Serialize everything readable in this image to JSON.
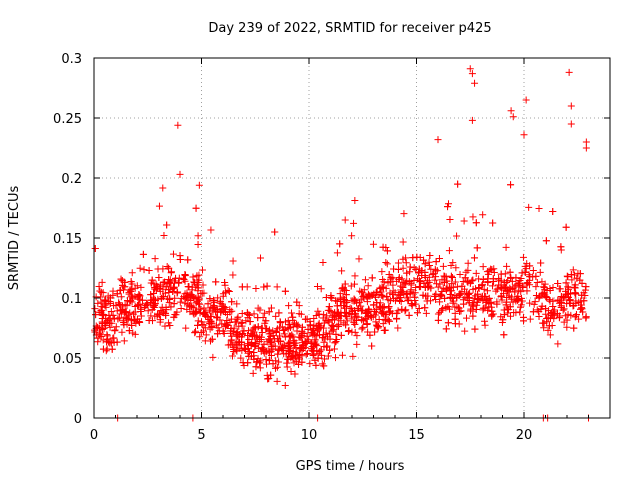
{
  "chart_data": {
    "type": "scatter",
    "title": "Day 239 of 2022, SRMTID for receiver p425",
    "xlabel": "GPS time / hours",
    "ylabel": "SRMTID / TECUs",
    "xlim": [
      0,
      24
    ],
    "ylim": [
      0,
      0.3
    ],
    "xticks": [
      0,
      5,
      10,
      15,
      20
    ],
    "yticks": [
      0,
      0.05,
      0.1,
      0.15,
      0.2,
      0.25,
      0.3
    ],
    "xtick_labels": [
      "0",
      "5",
      "10",
      "15",
      "20"
    ],
    "ytick_labels": [
      "0",
      "0.05",
      "0.1",
      "0.15",
      "0.2",
      "0.25",
      "0.3"
    ],
    "grid": true,
    "marker": "plus",
    "color": "#ff0000",
    "series": [
      {
        "name": "SRMTID",
        "hourly_median": [
          0.08,
          0.085,
          0.095,
          0.1,
          0.11,
          0.09,
          0.08,
          0.065,
          0.065,
          0.06,
          0.06,
          0.075,
          0.09,
          0.095,
          0.1,
          0.115,
          0.11,
          0.105,
          0.1,
          0.105,
          0.11,
          0.095,
          0.1
        ],
        "zero_values_at_hours": [
          1.1,
          4.6,
          10.4,
          20.9,
          21.1,
          23.0
        ],
        "outliers": [
          {
            "x": 3.9,
            "y": 0.244
          },
          {
            "x": 4.0,
            "y": 0.203
          },
          {
            "x": 4.9,
            "y": 0.194
          },
          {
            "x": 16.0,
            "y": 0.232
          },
          {
            "x": 17.5,
            "y": 0.291
          },
          {
            "x": 17.6,
            "y": 0.287
          },
          {
            "x": 17.7,
            "y": 0.279
          },
          {
            "x": 17.6,
            "y": 0.248
          },
          {
            "x": 19.4,
            "y": 0.256
          },
          {
            "x": 19.5,
            "y": 0.251
          },
          {
            "x": 20.1,
            "y": 0.265
          },
          {
            "x": 20.0,
            "y": 0.236
          },
          {
            "x": 22.1,
            "y": 0.288
          },
          {
            "x": 22.2,
            "y": 0.26
          },
          {
            "x": 22.2,
            "y": 0.245
          },
          {
            "x": 22.9,
            "y": 0.23
          },
          {
            "x": 22.9,
            "y": 0.225
          }
        ]
      }
    ]
  }
}
